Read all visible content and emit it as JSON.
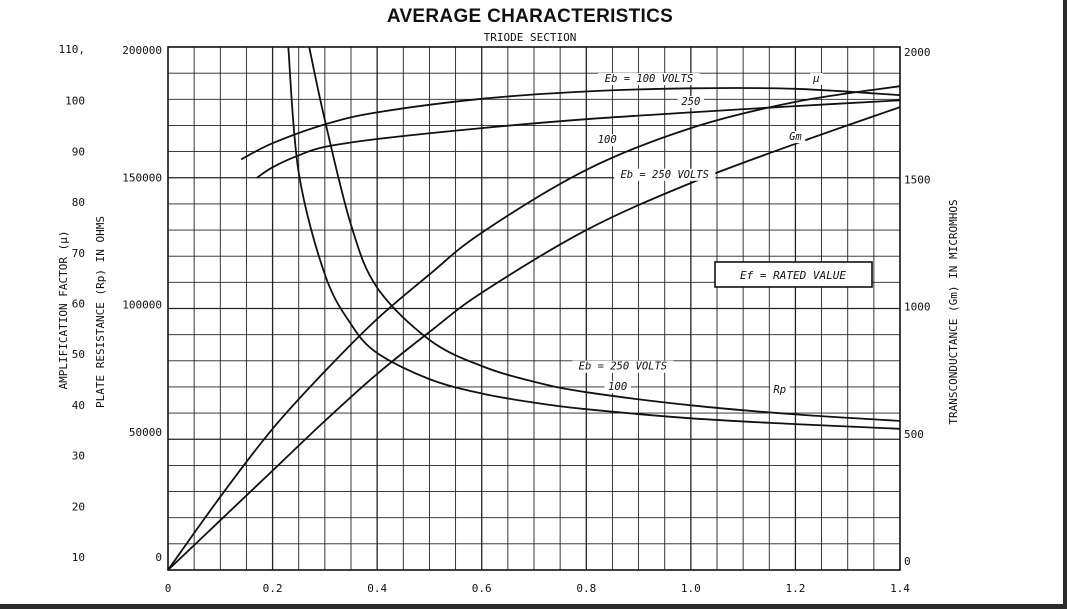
{
  "chart_data": {
    "type": "line",
    "title": "AVERAGE CHARACTERISTICS",
    "subtitle": "TRIODE SECTION",
    "x_ticks": [
      "0",
      "0.2",
      "0.4",
      "0.6",
      "0.8",
      "1.0",
      "1.2",
      "1.4"
    ],
    "xlim": [
      0,
      1.4
    ],
    "left_axis_mu": {
      "label": "AMPLIFICATION FACTOR (μ)",
      "ticks": [
        "110,",
        "100",
        "90",
        "80",
        "70",
        "60",
        "50",
        "40",
        "30",
        "20",
        "10"
      ],
      "ylim": [
        10,
        110
      ]
    },
    "left_axis_rp": {
      "label": "PLATE RESISTANCE (Rp) IN OHMS",
      "ticks": [
        "200000",
        "150000",
        "100000",
        "50000",
        "0"
      ],
      "ylim": [
        0,
        200000
      ]
    },
    "right_axis_gm": {
      "label": "TRANSCONDUCTANCE (Gm) IN MICROMHOS",
      "ticks": [
        "2000",
        "1500",
        "1000",
        "500",
        "0"
      ],
      "ylim": [
        0,
        2000
      ]
    },
    "grid": true,
    "series": [
      {
        "name": "μ, Eb = 100 VOLTS",
        "axis": "mu",
        "x": [
          0.14,
          0.2,
          0.3,
          0.4,
          0.6,
          0.8,
          1.0,
          1.2,
          1.4
        ],
        "y": [
          88.5,
          91.6,
          95.2,
          97.5,
          100.1,
          101.5,
          102.1,
          102.0,
          100.8
        ]
      },
      {
        "name": "μ, 250",
        "axis": "mu",
        "x": [
          0.17,
          0.2,
          0.25,
          0.3,
          0.4,
          0.6,
          0.8,
          1.0,
          1.2,
          1.4
        ],
        "y": [
          85.0,
          87.0,
          89.3,
          90.9,
          92.4,
          94.5,
          96.2,
          97.5,
          98.7,
          99.8
        ]
      },
      {
        "name": "Gm, Eb = 100",
        "axis": "gm",
        "x": [
          0,
          0.1,
          0.2,
          0.3,
          0.4,
          0.5,
          0.6,
          0.8,
          1.0,
          1.2,
          1.4
        ],
        "y": [
          0,
          280,
          540,
          760,
          960,
          1130,
          1290,
          1530,
          1690,
          1790,
          1850
        ]
      },
      {
        "name": "Gm, Eb = 250 VOLTS",
        "axis": "gm",
        "x": [
          0,
          0.1,
          0.2,
          0.3,
          0.4,
          0.5,
          0.6,
          0.8,
          1.0,
          1.2,
          1.4
        ],
        "y": [
          0,
          190,
          380,
          570,
          750,
          910,
          1060,
          1300,
          1480,
          1630,
          1770
        ]
      },
      {
        "name": "Rp, Eb = 100",
        "axis": "rp",
        "x": [
          0.23,
          0.25,
          0.3,
          0.35,
          0.4,
          0.5,
          0.6,
          0.7,
          0.8,
          1.0,
          1.2,
          1.4
        ],
        "y": [
          200000,
          152000,
          113000,
          94000,
          83000,
          73000,
          67500,
          64000,
          61500,
          58000,
          55800,
          54000
        ]
      },
      {
        "name": "Rp, Eb = 250 VOLTS",
        "axis": "rp",
        "x": [
          0.27,
          0.3,
          0.35,
          0.4,
          0.5,
          0.6,
          0.7,
          0.8,
          1.0,
          1.2,
          1.4
        ],
        "y": [
          200000,
          172000,
          132000,
          108000,
          88000,
          78000,
          72000,
          68000,
          63000,
          59500,
          57000
        ]
      }
    ],
    "annotations": [
      {
        "text": "Eb = 100 VOLTS",
        "x": 0.92,
        "y_mu": 103.3
      },
      {
        "text": "μ",
        "x": 1.24,
        "y_mu": 103.3
      },
      {
        "text": "250",
        "x": 1.0,
        "y_mu": 98.9
      },
      {
        "text": "100",
        "x": 0.84,
        "y_mu": 91.6
      },
      {
        "text": "Gm",
        "x": 1.2,
        "y_mu": 92.2
      },
      {
        "text": "Eb = 250 VOLTS",
        "x": 0.95,
        "y_mu": 85.0
      },
      {
        "text": "Eb = 250 VOLTS",
        "x": 0.87,
        "y_mu": 48.3
      },
      {
        "text": "100",
        "x": 0.86,
        "y_mu": 44.4
      },
      {
        "text": "Rp",
        "x": 1.17,
        "y_mu": 43.8
      }
    ],
    "legend_box": "Ef = RATED VALUE"
  }
}
